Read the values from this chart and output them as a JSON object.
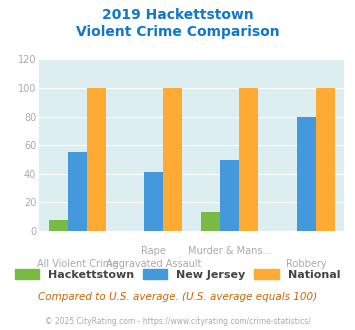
{
  "title_line1": "2019 Hackettstown",
  "title_line2": "Violent Crime Comparison",
  "top_labels": [
    "",
    "Rape",
    "Murder & Mans...",
    ""
  ],
  "bottom_labels": [
    "All Violent Crime",
    "Aggravated Assault",
    "",
    "Robbery"
  ],
  "series": {
    "Hackettstown": [
      8,
      0,
      13,
      0
    ],
    "New Jersey": [
      55,
      41,
      50,
      80
    ],
    "National": [
      100,
      100,
      100,
      100
    ]
  },
  "colors": {
    "Hackettstown": "#77bb44",
    "New Jersey": "#4499dd",
    "National": "#ffaa33"
  },
  "ylim": [
    0,
    120
  ],
  "yticks": [
    0,
    20,
    40,
    60,
    80,
    100,
    120
  ],
  "title_color": "#1177cc",
  "axis_label_color": "#aaaaaa",
  "legend_label_color": "#444444",
  "background_color": "#ddeef0",
  "note_text": "Compared to U.S. average. (U.S. average equals 100)",
  "note_color": "#cc6600",
  "footer_text": "© 2025 CityRating.com - https://www.cityrating.com/crime-statistics/",
  "footer_color": "#aaaaaa",
  "bar_width": 0.25
}
